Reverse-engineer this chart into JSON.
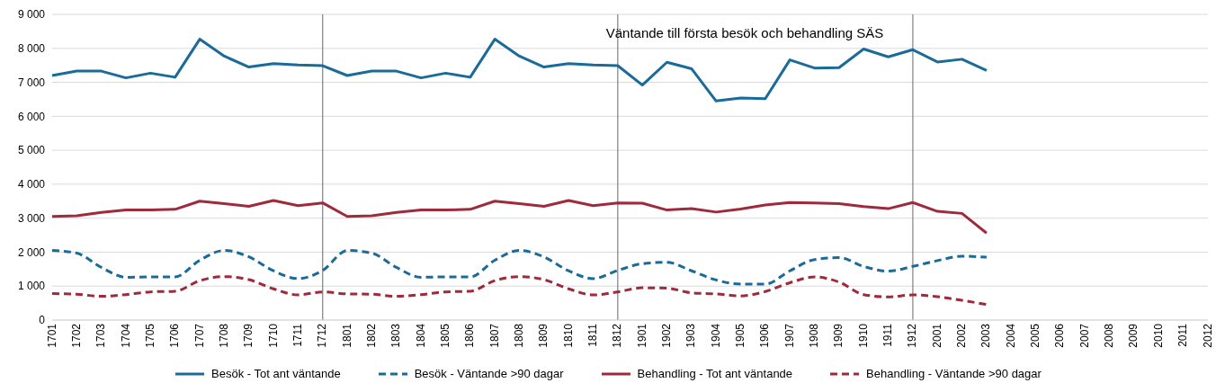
{
  "chart_data": {
    "type": "line",
    "title": "Väntande till första besök och behandling SÄS",
    "categories": [
      "1701",
      "1702",
      "1703",
      "1704",
      "1705",
      "1706",
      "1707",
      "1708",
      "1709",
      "1710",
      "1711",
      "1712",
      "1801",
      "1802",
      "1803",
      "1804",
      "1805",
      "1806",
      "1807",
      "1808",
      "1809",
      "1810",
      "1811",
      "1812",
      "1901",
      "1902",
      "1903",
      "1904",
      "1905",
      "1906",
      "1907",
      "1908",
      "1909",
      "1910",
      "1911",
      "1912",
      "2001",
      "2002",
      "2003",
      "2004",
      "2005",
      "2006",
      "2007",
      "2008",
      "2009",
      "2010",
      "2011",
      "2012"
    ],
    "series": [
      {
        "name": "Besök - Tot ant väntande",
        "color": "#1a6a9a",
        "line_style": "solid",
        "values": [
          7200,
          7330,
          7330,
          7130,
          7270,
          7150,
          8270,
          7770,
          7450,
          7550,
          7510,
          7490,
          7200,
          7330,
          7330,
          7130,
          7270,
          7150,
          8270,
          7770,
          7450,
          7550,
          7510,
          7490,
          6920,
          7590,
          7400,
          6450,
          6540,
          6520,
          7660,
          7420,
          7430,
          7980,
          7750,
          7960,
          7600,
          7680,
          7350,
          null,
          null,
          null,
          null,
          null,
          null,
          null,
          null,
          null
        ]
      },
      {
        "name": "Besök - Väntande >90 dagar",
        "color": "#1a6a9a",
        "line_style": "dashed",
        "values": [
          2050,
          1970,
          1550,
          1260,
          1270,
          1270,
          1760,
          2050,
          1860,
          1450,
          1220,
          1460,
          2050,
          1970,
          1550,
          1260,
          1270,
          1270,
          1760,
          2050,
          1860,
          1450,
          1220,
          1460,
          1660,
          1700,
          1450,
          1180,
          1060,
          1060,
          1450,
          1780,
          1840,
          1580,
          1440,
          1580,
          1750,
          1880,
          1850,
          null,
          null,
          null,
          null,
          null,
          null,
          null,
          null,
          null
        ]
      },
      {
        "name": "Behandling - Tot ant väntande",
        "color": "#9e2a3c",
        "line_style": "solid",
        "values": [
          3050,
          3070,
          3170,
          3240,
          3240,
          3260,
          3500,
          3430,
          3350,
          3520,
          3370,
          3450,
          3050,
          3070,
          3170,
          3240,
          3240,
          3260,
          3500,
          3430,
          3350,
          3520,
          3370,
          3450,
          3440,
          3240,
          3280,
          3180,
          3270,
          3390,
          3460,
          3450,
          3430,
          3340,
          3280,
          3460,
          3200,
          3140,
          2560,
          null,
          null,
          null,
          null,
          null,
          null,
          null,
          null,
          null
        ]
      },
      {
        "name": "Behandling - Väntande >90 dagar",
        "color": "#9e2a3c",
        "line_style": "dashed",
        "values": [
          780,
          760,
          700,
          750,
          830,
          850,
          1160,
          1280,
          1190,
          920,
          740,
          830,
          770,
          760,
          700,
          750,
          830,
          850,
          1160,
          1280,
          1190,
          920,
          740,
          830,
          950,
          940,
          800,
          770,
          710,
          840,
          1100,
          1270,
          1120,
          750,
          680,
          740,
          690,
          580,
          460,
          null,
          null,
          null,
          null,
          null,
          null,
          null,
          null,
          null
        ]
      }
    ],
    "ylim": [
      0,
      9000
    ],
    "yticks": [
      0,
      {
        "value": 1000,
        "label": "1 000"
      },
      {
        "value": 2000,
        "label": "2 000"
      },
      {
        "value": 3000,
        "label": "3 000"
      },
      {
        "value": 4000,
        "label": "4 000"
      },
      {
        "value": 5000,
        "label": "5 000"
      },
      {
        "value": 6000,
        "label": "6 000"
      },
      {
        "value": 7000,
        "label": "7 000"
      },
      {
        "value": 8000,
        "label": "8 000"
      },
      {
        "value": 9000,
        "label": "9 000"
      }
    ],
    "ref_lines": [
      {
        "axis": "x",
        "value": "1712",
        "color": "#808080"
      },
      {
        "axis": "x",
        "value": "1812",
        "color": "#808080"
      },
      {
        "axis": "x",
        "value": "1912",
        "color": "#808080"
      }
    ],
    "grid": "y",
    "legend": "bottom",
    "marker": "none"
  }
}
